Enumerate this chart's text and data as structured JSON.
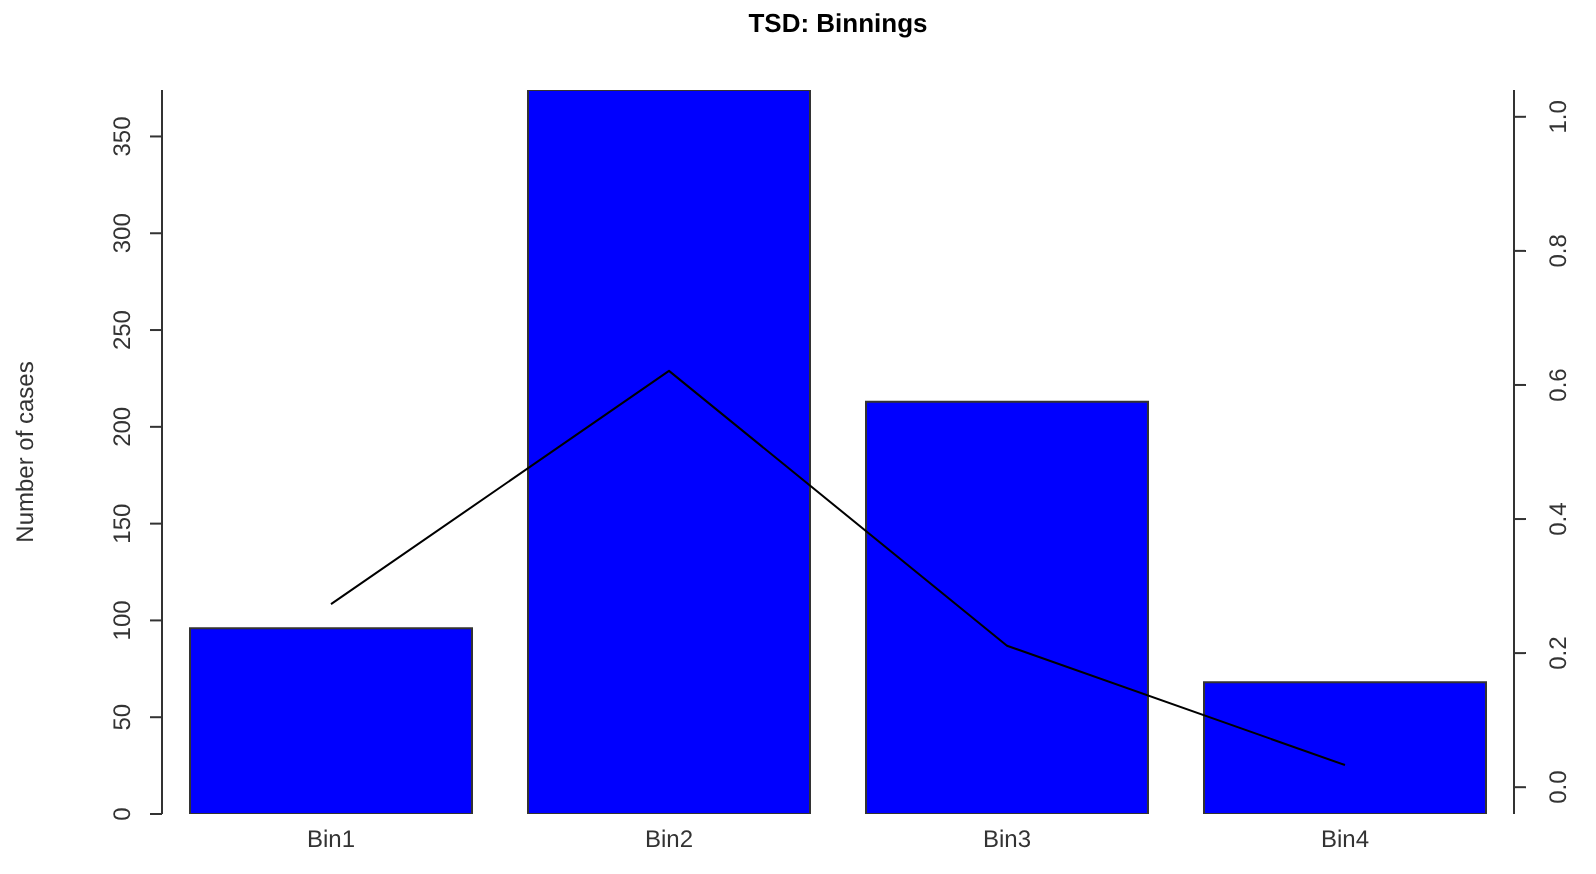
{
  "chart_data": {
    "type": "bar",
    "title": "TSD: Binnings",
    "ylabel": "Number of cases",
    "categories": [
      "Bin1",
      "Bin2",
      "Bin3",
      "Bin4"
    ],
    "series": [
      {
        "color": "#0000ff",
        "values": [
          96,
          374,
          213,
          68
        ]
      },
      {
        "type": "line",
        "color": "#000000",
        "axis": "y2",
        "values": [
          0.273,
          0.621,
          0.211,
          0.033
        ]
      }
    ],
    "ylim": [
      0,
      374
    ],
    "yticks": [
      0,
      50,
      100,
      150,
      200,
      250,
      300,
      350
    ],
    "y2lim": [
      -0.04,
      1.04
    ],
    "y2ticks": [
      {
        "value": 0,
        "label": "0.0"
      },
      0.2,
      0.4,
      0.6,
      0.8,
      {
        "value": 1,
        "label": "1.0"
      }
    ],
    "grid": false,
    "legend": false,
    "marker": "none"
  }
}
